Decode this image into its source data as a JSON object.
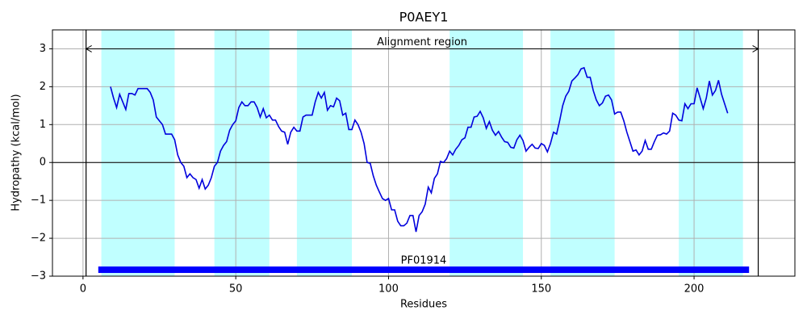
{
  "chart_data": {
    "type": "line",
    "title": "P0AEY1",
    "xlabel": "Residues",
    "ylabel": "Hydropathy (kcal/mol)",
    "xlim": [
      -10,
      233
    ],
    "ylim": [
      -3,
      3.5
    ],
    "xticks": [
      0,
      50,
      100,
      150,
      200
    ],
    "yticks": [
      {
        "value": -3,
        "label": "−3"
      },
      {
        "value": -2,
        "label": "−2"
      },
      {
        "value": -1,
        "label": "−1"
      },
      0,
      1,
      2,
      3
    ],
    "grid": true,
    "regions": [
      [
        6,
        30
      ],
      [
        43,
        61
      ],
      [
        70,
        88
      ],
      [
        120,
        144
      ],
      [
        153,
        174
      ],
      [
        195,
        216
      ]
    ],
    "region_color": "#c0ffff",
    "boundaries": [
      1,
      221
    ],
    "annotation": {
      "text": "Alignment region",
      "start": 1,
      "end": 221,
      "y": 3
    },
    "domains": [
      {
        "name": "PF01914",
        "start": 5,
        "end": 218,
        "y": -2.83,
        "color": "#0000ff"
      }
    ],
    "x": [
      9,
      10,
      11,
      12,
      13,
      14,
      15,
      16,
      17,
      18,
      19,
      20,
      21,
      22,
      23,
      24,
      25,
      26,
      27,
      28,
      29,
      30,
      31,
      32,
      33,
      34,
      35,
      36,
      37,
      38,
      39,
      40,
      41,
      42,
      43,
      44,
      45,
      46,
      47,
      48,
      49,
      50,
      51,
      52,
      53,
      54,
      55,
      56,
      57,
      58,
      59,
      60,
      61,
      62,
      63,
      64,
      65,
      66,
      67,
      68,
      69,
      70,
      71,
      72,
      73,
      74,
      75,
      76,
      77,
      78,
      79,
      80,
      81,
      82,
      83,
      84,
      85,
      86,
      87,
      88,
      89,
      90,
      91,
      92,
      93,
      94,
      95,
      96,
      97,
      98,
      99,
      100,
      101,
      102,
      103,
      104,
      105,
      106,
      107,
      108,
      109,
      110,
      111,
      112,
      113,
      114,
      115,
      116,
      117,
      118,
      119,
      120,
      121,
      122,
      123,
      124,
      125,
      126,
      127,
      128,
      129,
      130,
      131,
      132,
      133,
      134,
      135,
      136,
      137,
      138,
      139,
      140,
      141,
      142,
      143,
      144,
      145,
      146,
      147,
      148,
      149,
      150,
      151,
      152,
      153,
      154,
      155,
      156,
      157,
      158,
      159,
      160,
      161,
      162,
      163,
      164,
      165,
      166,
      167,
      168,
      169,
      170,
      171,
      172,
      173,
      174,
      175,
      176,
      177,
      178,
      179,
      180,
      181,
      182,
      183,
      184,
      185,
      186,
      187,
      188,
      189,
      190,
      191,
      192,
      193,
      194,
      195,
      196,
      197,
      198,
      199,
      200,
      201,
      202,
      203,
      204,
      205,
      206,
      207,
      208,
      209,
      210,
      211
    ],
    "series": [
      {
        "color": "#0000dd",
        "values": [
          2.0,
          1.7,
          1.45,
          1.8,
          1.6,
          1.4,
          1.82,
          1.82,
          1.78,
          1.95,
          1.95,
          1.95,
          1.95,
          1.85,
          1.65,
          1.2,
          1.1,
          1.0,
          0.75,
          0.75,
          0.75,
          0.6,
          0.2,
          0.0,
          -0.1,
          -0.4,
          -0.3,
          -0.4,
          -0.45,
          -0.68,
          -0.45,
          -0.7,
          -0.6,
          -0.4,
          -0.1,
          0.0,
          0.3,
          0.45,
          0.55,
          0.85,
          1.0,
          1.1,
          1.45,
          1.6,
          1.5,
          1.5,
          1.6,
          1.6,
          1.45,
          1.2,
          1.42,
          1.18,
          1.25,
          1.12,
          1.12,
          0.95,
          0.83,
          0.8,
          0.48,
          0.8,
          0.93,
          0.83,
          0.83,
          1.2,
          1.25,
          1.25,
          1.25,
          1.6,
          1.85,
          1.7,
          1.85,
          1.38,
          1.5,
          1.47,
          1.7,
          1.63,
          1.25,
          1.3,
          0.87,
          0.87,
          1.12,
          1.0,
          0.8,
          0.5,
          0.0,
          -0.02,
          -0.35,
          -0.6,
          -0.78,
          -0.95,
          -1.0,
          -0.95,
          -1.25,
          -1.25,
          -1.55,
          -1.67,
          -1.67,
          -1.6,
          -1.4,
          -1.4,
          -1.83,
          -1.4,
          -1.3,
          -1.1,
          -0.65,
          -0.8,
          -0.42,
          -0.3,
          0.03,
          0.0,
          0.1,
          0.3,
          0.2,
          0.35,
          0.45,
          0.6,
          0.65,
          0.93,
          0.93,
          1.2,
          1.22,
          1.35,
          1.18,
          0.9,
          1.08,
          0.85,
          0.72,
          0.82,
          0.67,
          0.55,
          0.53,
          0.4,
          0.38,
          0.6,
          0.72,
          0.58,
          0.3,
          0.4,
          0.48,
          0.38,
          0.37,
          0.5,
          0.45,
          0.28,
          0.5,
          0.8,
          0.75,
          1.1,
          1.5,
          1.75,
          1.88,
          2.15,
          2.23,
          2.32,
          2.47,
          2.5,
          2.25,
          2.25,
          1.9,
          1.65,
          1.5,
          1.57,
          1.75,
          1.78,
          1.65,
          1.28,
          1.33,
          1.33,
          1.1,
          0.8,
          0.55,
          0.3,
          0.33,
          0.2,
          0.3,
          0.58,
          0.35,
          0.35,
          0.55,
          0.72,
          0.73,
          0.78,
          0.75,
          0.83,
          1.3,
          1.25,
          1.12,
          1.1,
          1.55,
          1.42,
          1.55,
          1.55,
          1.97,
          1.7,
          1.42,
          1.7,
          2.15,
          1.78,
          1.9,
          2.17,
          1.8,
          1.55,
          1.3
        ]
      }
    ]
  }
}
